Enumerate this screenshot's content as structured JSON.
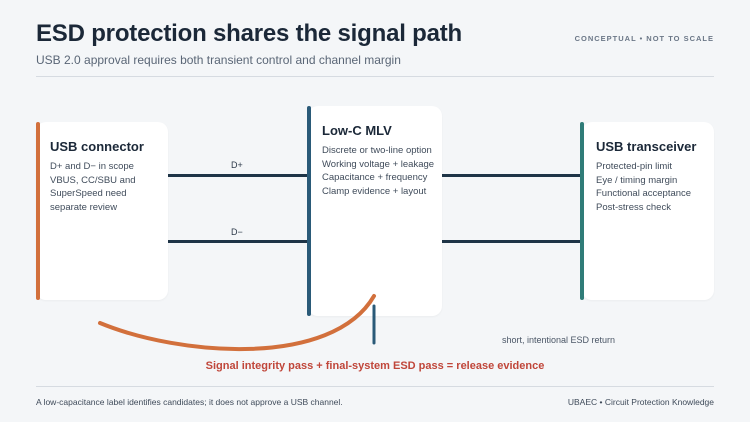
{
  "header": {
    "title": "ESD protection shares the signal path",
    "subtitle": "USB 2.0 approval requires both transient control and channel margin",
    "tag": "CONCEPTUAL • NOT TO SCALE"
  },
  "colors": {
    "connector_accent": "#d2703c",
    "mlv_accent": "#2a5a78",
    "transceiver_accent": "#2f7c78",
    "wire": "#1e3447",
    "evidence_text": "#c0463a"
  },
  "cards": {
    "connector": {
      "title": "USB connector",
      "lines": [
        "D+ and D− in scope",
        "VBUS, CC/SBU and",
        "SuperSpeed need",
        "separate review"
      ]
    },
    "mlv": {
      "title": "Low-C MLV",
      "lines": [
        "Discrete or two-line option",
        "Working voltage + leakage",
        "Capacitance + frequency",
        "Clamp evidence + layout"
      ]
    },
    "transceiver": {
      "title": "USB transceiver",
      "lines": [
        "Protected-pin limit",
        "Eye / timing margin",
        "Functional acceptance",
        "Post-stress check"
      ]
    }
  },
  "wires": {
    "dplus_label": "D+",
    "dminus_label": "D−"
  },
  "return_path": {
    "label": "short, intentional ESD return"
  },
  "evidence": "Signal integrity pass + final-system ESD pass = release evidence",
  "footer": {
    "note": "A low-capacitance label identifies candidates; it does not approve a USB channel.",
    "credit": "UBAEC • Circuit Protection Knowledge"
  }
}
